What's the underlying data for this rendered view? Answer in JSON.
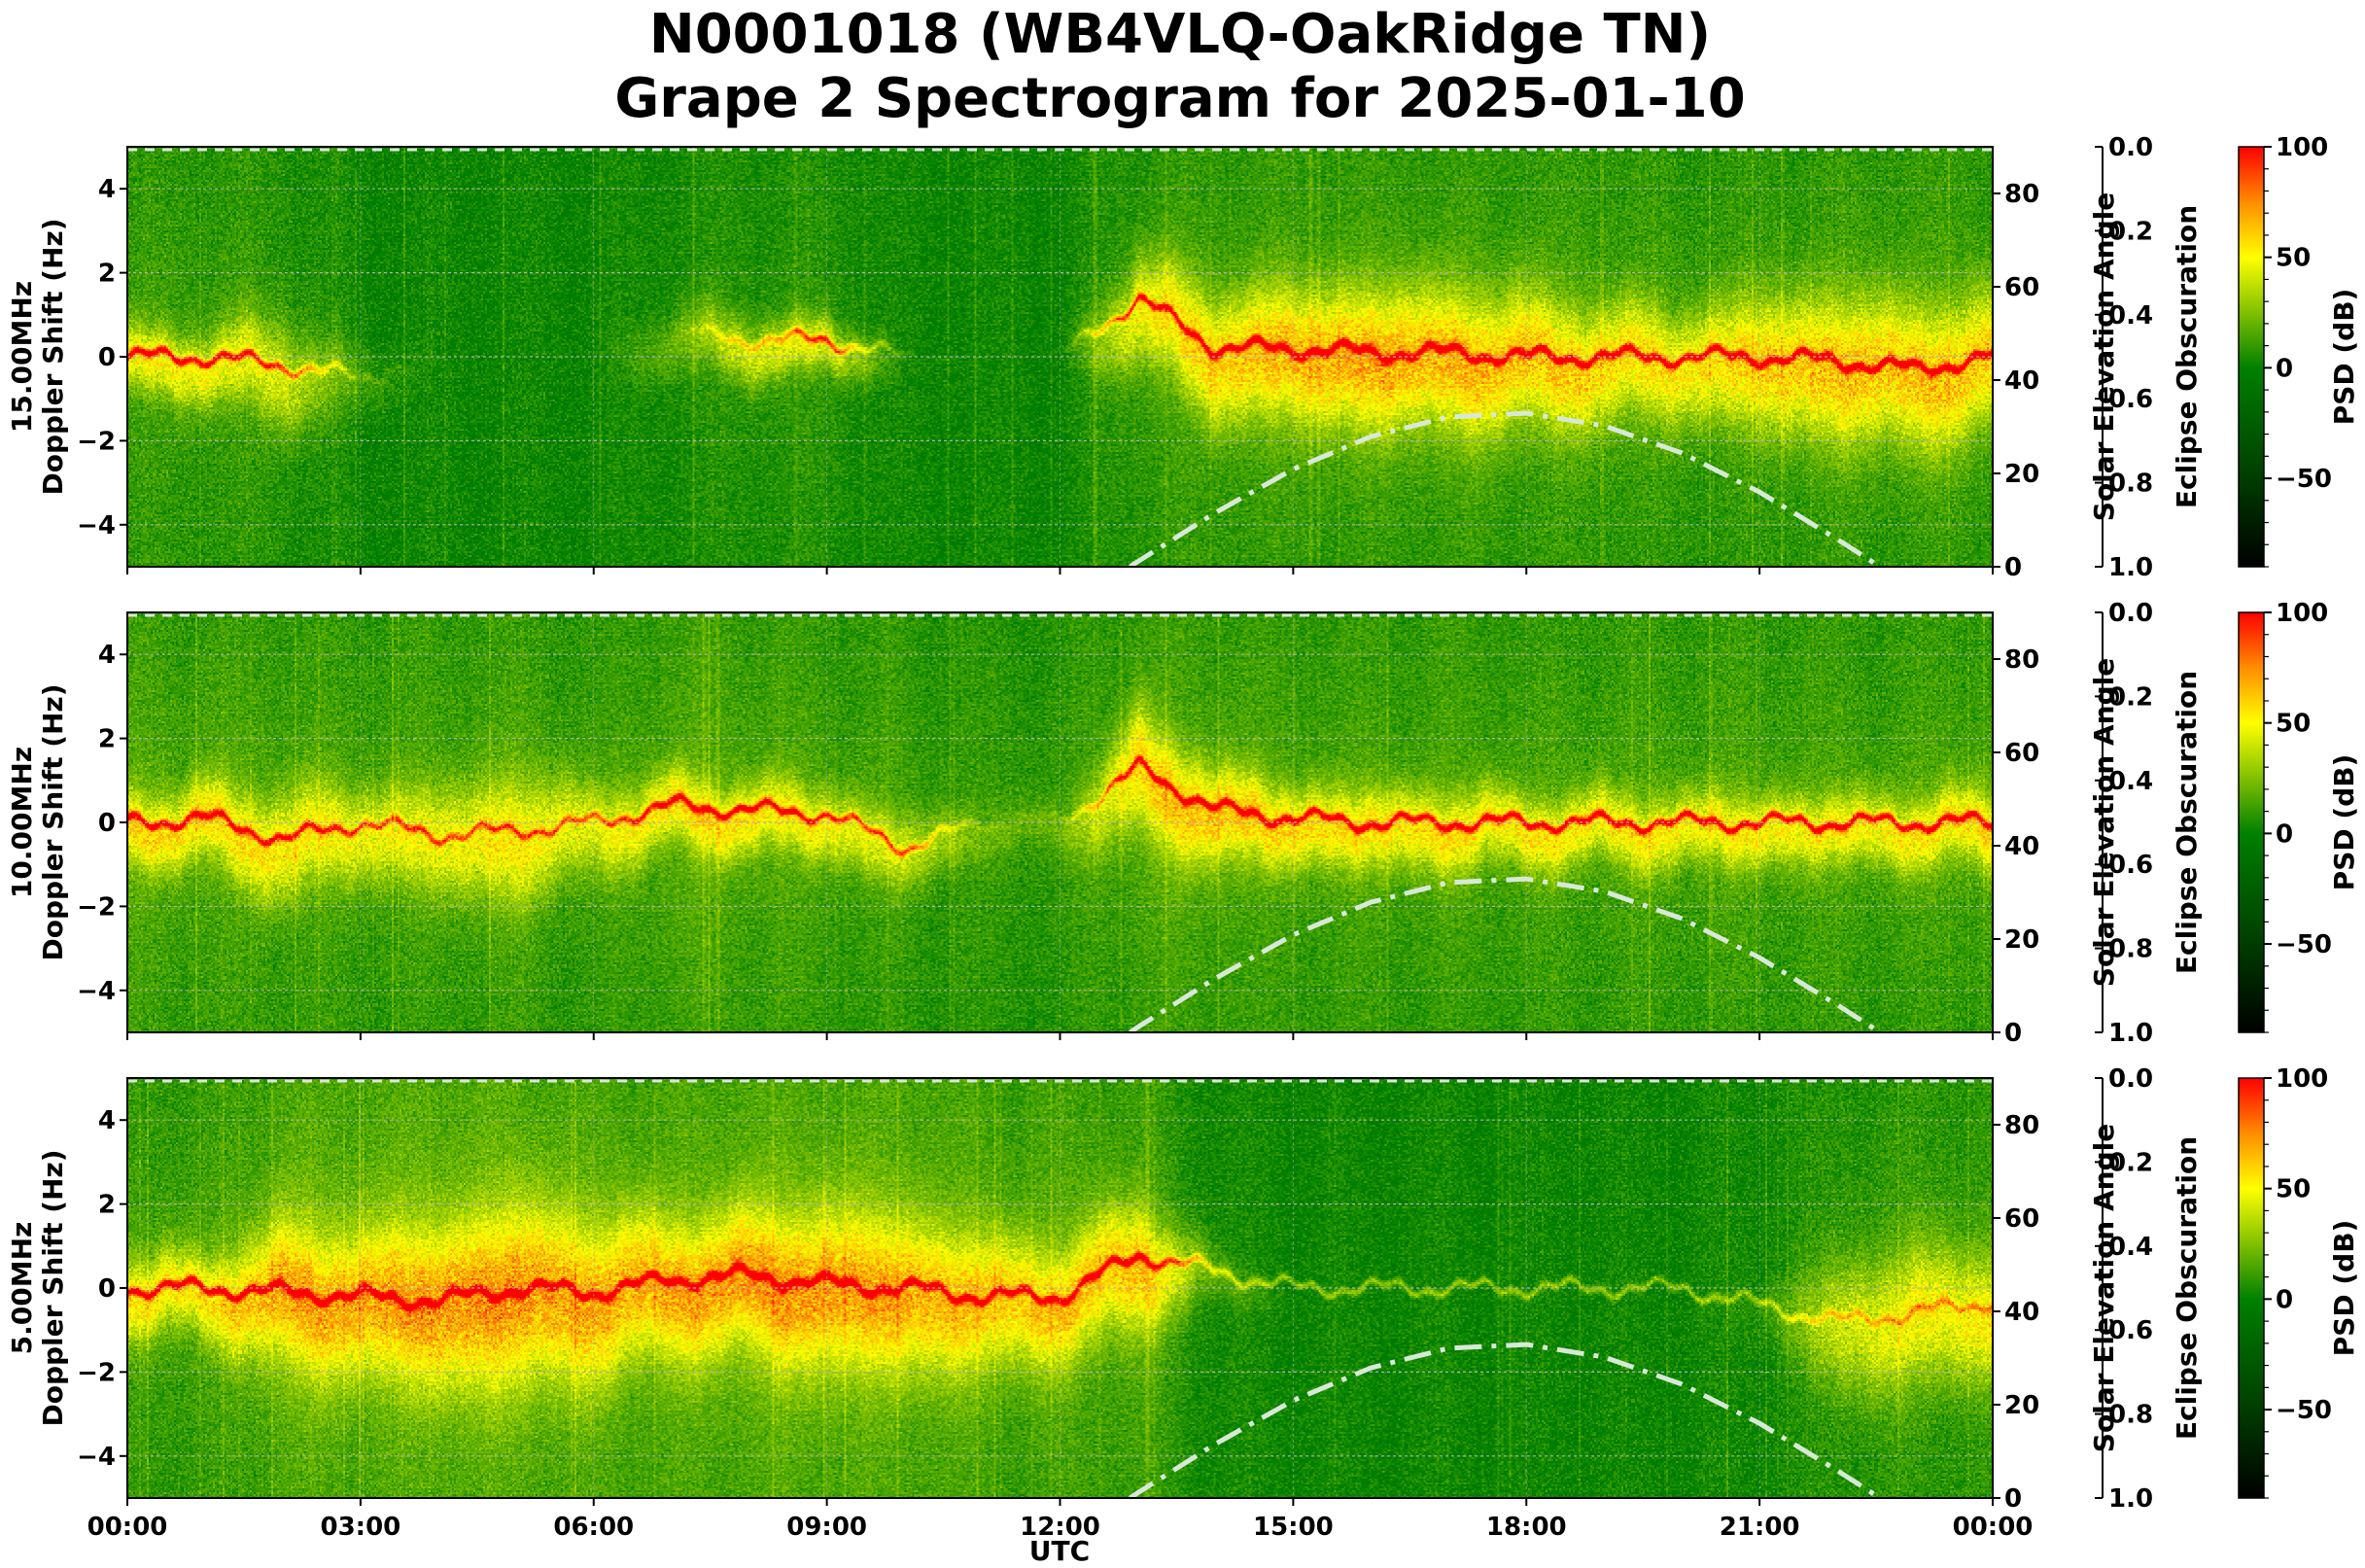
{
  "title": {
    "line1": "N0001018 (WB4VLQ-OakRidge TN)",
    "line2": "Grape 2 Spectrogram for 2025-01-10"
  },
  "chart_data": {
    "type": "heatmap",
    "xlabel": "UTC",
    "xlim_hours": [
      0,
      24
    ],
    "xticks": [
      "00:00",
      "03:00",
      "06:00",
      "09:00",
      "12:00",
      "15:00",
      "18:00",
      "21:00",
      "00:00"
    ],
    "grid": true,
    "panels": [
      {
        "freq_label": "15.00MHz",
        "ylabel": "Doppler Shift (Hz)",
        "ylim": [
          -5,
          5
        ],
        "yticks": [
          "−4",
          "−2",
          "0",
          "2",
          "4"
        ],
        "right_ylabel": "Solar Elevation Angle",
        "right_ylim": [
          0,
          90
        ],
        "right_yticks": [
          "0",
          "20",
          "40",
          "60",
          "80"
        ],
        "eclipse_label": "Eclipse Obscuration",
        "eclipse_ylim": [
          1.0,
          0.0
        ],
        "eclipse_ticks": [
          "0.0",
          "0.2",
          "0.4",
          "0.6",
          "0.8",
          "1.0"
        ],
        "colorbar_label": "PSD (dB)",
        "colorbar_ticks": [
          "−50",
          "0",
          "50",
          "100"
        ]
      },
      {
        "freq_label": "10.00MHz",
        "ylabel": "Doppler Shift (Hz)",
        "ylim": [
          -5,
          5
        ],
        "yticks": [
          "−4",
          "−2",
          "0",
          "2",
          "4"
        ],
        "right_ylabel": "Solar Elevation Angle",
        "right_ylim": [
          0,
          90
        ],
        "right_yticks": [
          "0",
          "20",
          "40",
          "60",
          "80"
        ],
        "eclipse_label": "Eclipse Obscuration",
        "eclipse_ylim": [
          1.0,
          0.0
        ],
        "eclipse_ticks": [
          "0.0",
          "0.2",
          "0.4",
          "0.6",
          "0.8",
          "1.0"
        ],
        "colorbar_label": "PSD (dB)",
        "colorbar_ticks": [
          "−50",
          "0",
          "50",
          "100"
        ]
      },
      {
        "freq_label": "5.00MHz",
        "ylabel": "Doppler Shift (Hz)",
        "ylim": [
          -5,
          5
        ],
        "yticks": [
          "−4",
          "−2",
          "0",
          "2",
          "4"
        ],
        "right_ylabel": "Solar Elevation Angle",
        "right_ylim": [
          0,
          90
        ],
        "right_yticks": [
          "0",
          "20",
          "40",
          "60",
          "80"
        ],
        "eclipse_label": "Eclipse Obscuration",
        "eclipse_ylim": [
          1.0,
          0.0
        ],
        "eclipse_ticks": [
          "0.0",
          "0.2",
          "0.4",
          "0.6",
          "0.8",
          "1.0"
        ],
        "colorbar_label": "PSD (dB)",
        "colorbar_ticks": [
          "−50",
          "0",
          "50",
          "100"
        ]
      }
    ],
    "colorbar_range_db": [
      -90,
      100
    ],
    "colormap": [
      {
        "db": -90,
        "color": "#000000"
      },
      {
        "db": -50,
        "color": "#003c00"
      },
      {
        "db": 0,
        "color": "#008000"
      },
      {
        "db": 25,
        "color": "#80c000"
      },
      {
        "db": 50,
        "color": "#ffff00"
      },
      {
        "db": 75,
        "color": "#ff8c00"
      },
      {
        "db": 100,
        "color": "#ff0000"
      }
    ],
    "solar_elevation": {
      "style": "dash-dot",
      "color": "#d8e8d8",
      "hours": [
        12.9,
        13,
        14,
        15,
        16,
        17,
        18,
        19,
        20,
        21,
        22,
        22.55
      ],
      "degrees": [
        0,
        1.1,
        11.6,
        20.9,
        27.9,
        32.1,
        32.9,
        30.2,
        24.4,
        16.0,
        5.9,
        0
      ]
    }
  }
}
